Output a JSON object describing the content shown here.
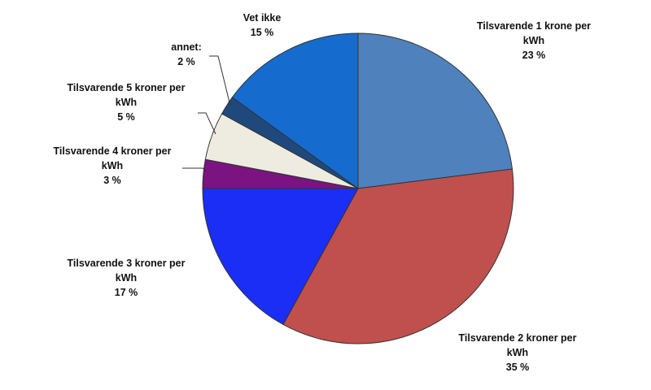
{
  "chart_data": {
    "type": "pie",
    "start_angle_deg": 0,
    "direction": "clockwise",
    "slices": [
      {
        "label": "Tilsvarende 1 krone per kWh",
        "value": 23,
        "value_label": "23 %",
        "color": "#4f81bd"
      },
      {
        "label": "Tilsvarende 2 kroner per kWh",
        "value": 35,
        "value_label": "35 %",
        "color": "#c0504d"
      },
      {
        "label": "Tilsvarende 3 kroner per kWh",
        "value": 17,
        "value_label": "17 %",
        "color": "#1a2ef5"
      },
      {
        "label": "Tilsvarende 4 kroner per kWh",
        "value": 3,
        "value_label": "3 %",
        "color": "#7b1380"
      },
      {
        "label": "Tilsvarende 5 kroner per kWh",
        "value": 5,
        "value_label": "5 %",
        "color": "#eeece1"
      },
      {
        "label": "annet:",
        "value": 2,
        "value_label": "2 %",
        "color": "#1f497d"
      },
      {
        "label": "Vet ikke",
        "value": 15,
        "value_label": "15 %",
        "color": "#166bcf"
      }
    ]
  }
}
